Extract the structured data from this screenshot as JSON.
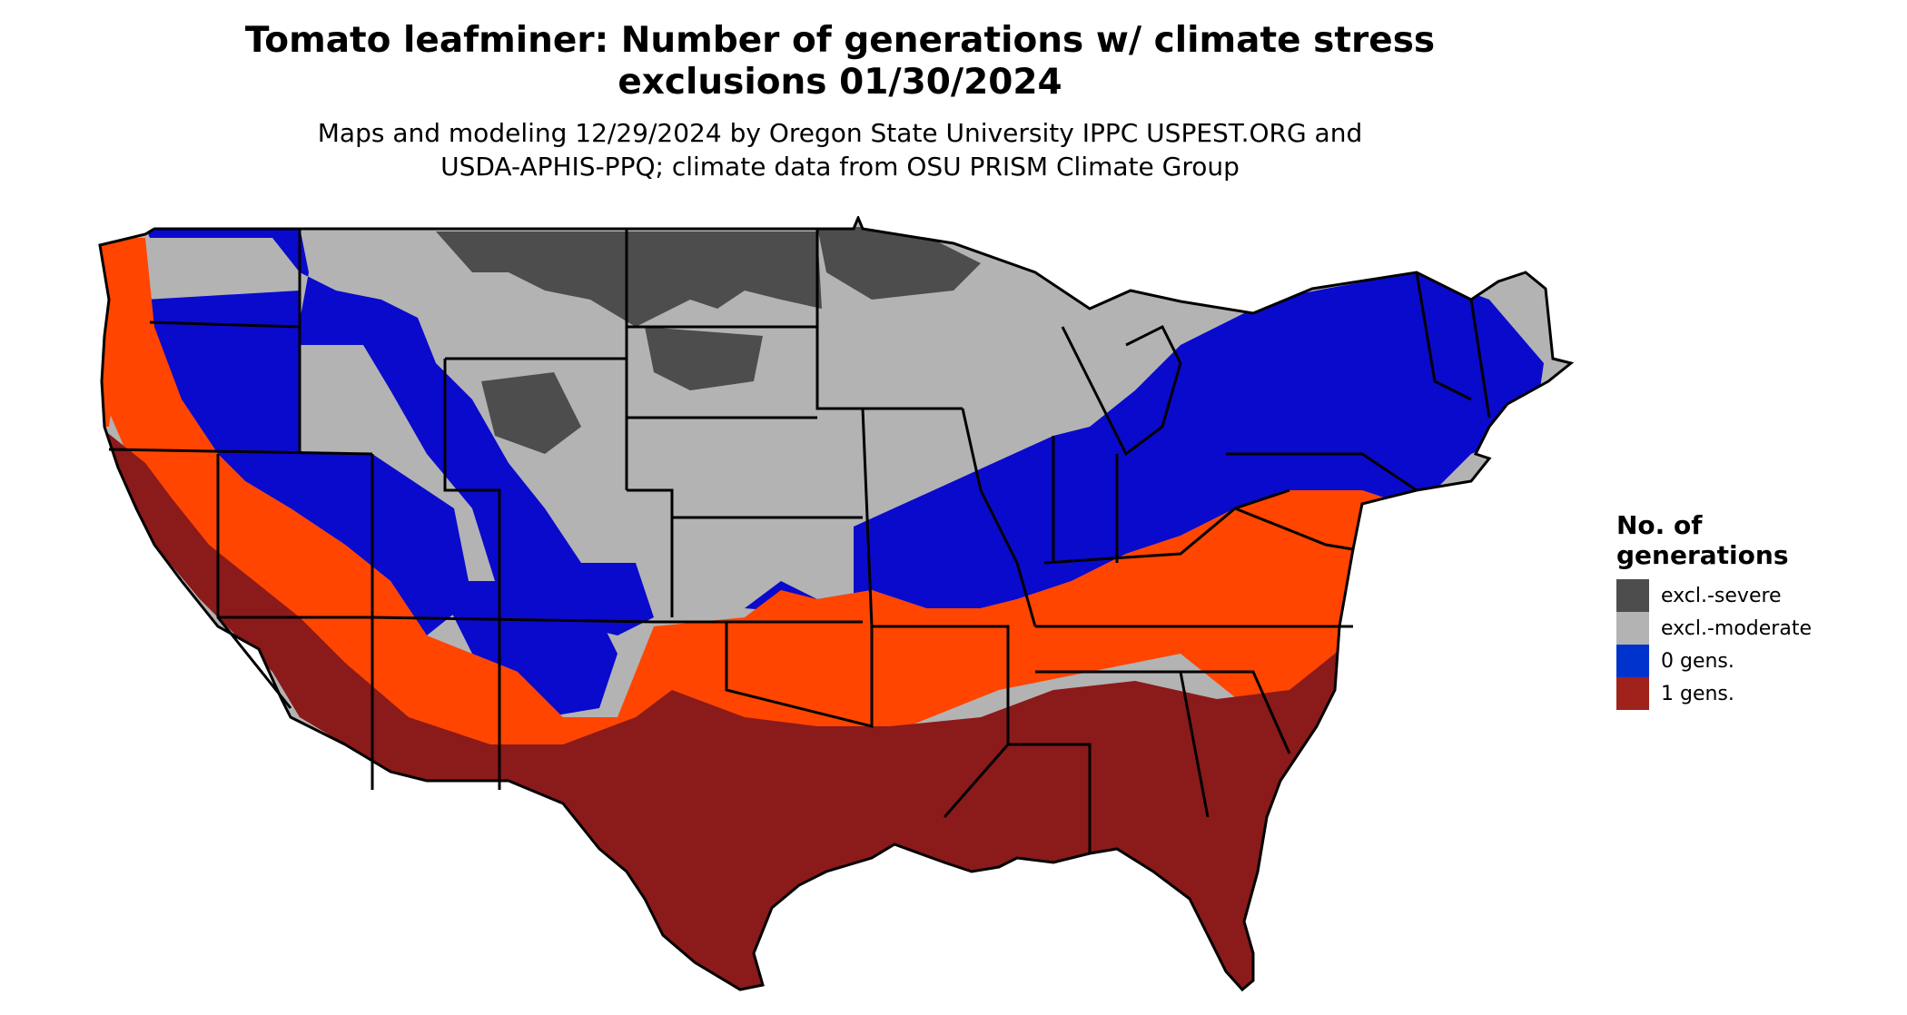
{
  "title": {
    "line1": "Tomato leafminer: Number of generations w/ climate stress",
    "line2": "exclusions 01/30/2024"
  },
  "subtitle": {
    "line1": "Maps and modeling 12/29/2024 by Oregon State University IPPC USPEST.ORG and",
    "line2": "USDA-APHIS-PPQ; climate data from OSU PRISM Climate Group"
  },
  "legend": {
    "title_line1": "No. of",
    "title_line2": "generations",
    "items": [
      {
        "label": "excl.-severe",
        "color": "#4d4d4d"
      },
      {
        "label": "excl.-moderate",
        "color": "#b3b3b3"
      },
      {
        "label": "0 gens.",
        "color": "#0033cc"
      },
      {
        "label": "1 gens.",
        "color": "#a0221a"
      }
    ]
  },
  "map_colors": {
    "severe": "#4d4d4d",
    "moderate": "#b3b3b3",
    "zero_gens": "#0a0acc",
    "one_gen_orange": "#ff4500",
    "one_gen_dark": "#8b1a1a",
    "borders": "#000000"
  }
}
